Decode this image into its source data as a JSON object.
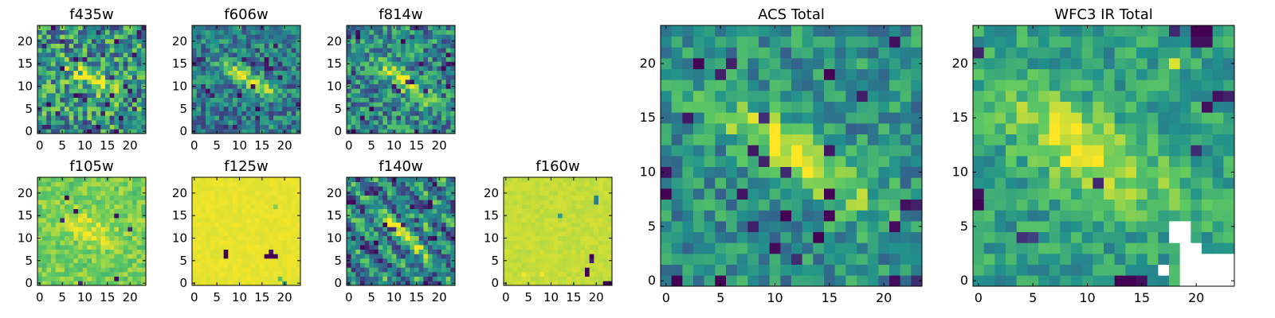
{
  "figure": {
    "description_free": true
  },
  "colormap": [
    "#440154",
    "#3b528b",
    "#21918c",
    "#5ec962",
    "#fde725"
  ],
  "chart_data": [
    {
      "type": "heatmap",
      "title": "f435w",
      "grid_size": 24,
      "xlim": [
        0,
        24
      ],
      "ylim": [
        0,
        24
      ],
      "xticks": [
        0,
        5,
        10,
        15,
        20
      ],
      "yticks": [
        0,
        5,
        10,
        15,
        20
      ],
      "field": {
        "base": 0.52,
        "noise": 0.34,
        "core": 0.42,
        "arm_dir": [
          1,
          -0.55
        ],
        "center": [
          12,
          11.5
        ],
        "spread": 4.2,
        "width": 1.4,
        "seed": 11,
        "dark_frac": 0.05,
        "bright_frac": 0.0
      }
    },
    {
      "type": "heatmap",
      "title": "f606w",
      "grid_size": 24,
      "xlim": [
        0,
        24
      ],
      "ylim": [
        0,
        24
      ],
      "xticks": [
        0,
        5,
        10,
        15,
        20
      ],
      "yticks": [
        0,
        5,
        10,
        15,
        20
      ],
      "field": {
        "base": 0.42,
        "noise": 0.24,
        "core": 0.5,
        "arm_dir": [
          1,
          -0.6
        ],
        "center": [
          12,
          11.5
        ],
        "spread": 5.0,
        "width": 1.3,
        "seed": 23,
        "dark_frac": 0.03,
        "bright_frac": 0.0
      }
    },
    {
      "type": "heatmap",
      "title": "f814w",
      "grid_size": 24,
      "xlim": [
        0,
        24
      ],
      "ylim": [
        0,
        24
      ],
      "xticks": [
        0,
        5,
        10,
        15,
        20
      ],
      "yticks": [
        0,
        5,
        10,
        15,
        20
      ],
      "field": {
        "base": 0.46,
        "noise": 0.28,
        "core": 0.5,
        "arm_dir": [
          1,
          -0.7
        ],
        "center": [
          12.5,
          11
        ],
        "spread": 5.2,
        "width": 1.4,
        "seed": 37,
        "dark_frac": 0.04,
        "bright_frac": 0.0
      }
    },
    {
      "type": "heatmap",
      "title": "f105w",
      "grid_size": 24,
      "xlim": [
        0,
        24
      ],
      "ylim": [
        0,
        24
      ],
      "xticks": [
        0,
        5,
        10,
        15,
        20
      ],
      "yticks": [
        0,
        5,
        10,
        15,
        20
      ],
      "field": {
        "base": 0.78,
        "noise": 0.12,
        "core": 0.16,
        "arm_dir": [
          1,
          -0.6
        ],
        "center": [
          11,
          12
        ],
        "spread": 4.5,
        "width": 2.2,
        "seed": 41,
        "dark_frac": 0.012,
        "bright_frac": 0.0
      }
    },
    {
      "type": "heatmap",
      "title": "f125w",
      "grid_size": 24,
      "xlim": [
        0,
        24
      ],
      "ylim": [
        0,
        24
      ],
      "xticks": [
        0,
        5,
        10,
        15,
        20
      ],
      "yticks": [
        0,
        5,
        10,
        15,
        20
      ],
      "field": {
        "base": 0.965,
        "noise": 0.02,
        "core": 0.0,
        "arm_dir": [
          1,
          -0.6
        ],
        "center": [
          12,
          12
        ],
        "spread": 4,
        "width": 2,
        "seed": 53,
        "dark_frac": 0.0,
        "bright_frac": 0.0
      },
      "outliers": [
        [
          7,
          6,
          0.0
        ],
        [
          7,
          7,
          0.0
        ],
        [
          16,
          6,
          0.0
        ],
        [
          17,
          6,
          0.0
        ],
        [
          17,
          7,
          0.05
        ],
        [
          18,
          6,
          0.0
        ],
        [
          20,
          0,
          0.55
        ],
        [
          19,
          1,
          0.7
        ],
        [
          18,
          17,
          0.8
        ]
      ]
    },
    {
      "type": "heatmap",
      "title": "f140w",
      "grid_size": 24,
      "xlim": [
        0,
        24
      ],
      "ylim": [
        0,
        24
      ],
      "xticks": [
        0,
        5,
        10,
        15,
        20
      ],
      "yticks": [
        0,
        5,
        10,
        15,
        20
      ],
      "field": {
        "base": 0.45,
        "noise": 0.22,
        "core": 0.45,
        "arm_dir": [
          1,
          -0.75
        ],
        "center": [
          12,
          11
        ],
        "spread": 5.0,
        "width": 1.3,
        "seed": 67,
        "dark_frac": 0.05,
        "bright_frac": 0.0,
        "stripes": 0.18
      }
    },
    {
      "type": "heatmap",
      "title": "f160w",
      "grid_size": 24,
      "xlim": [
        0,
        24
      ],
      "ylim": [
        0,
        24
      ],
      "xticks": [
        0,
        5,
        10,
        15,
        20
      ],
      "yticks": [
        0,
        5,
        10,
        15,
        20
      ],
      "field": {
        "base": 0.91,
        "noise": 0.03,
        "core": 0.0,
        "arm_dir": [
          1,
          -0.6
        ],
        "center": [
          12,
          12
        ],
        "spread": 4,
        "width": 2,
        "seed": 71,
        "dark_frac": 0.0,
        "bright_frac": 0.0
      },
      "outliers": [
        [
          18,
          2,
          0.0
        ],
        [
          18,
          3,
          0.0
        ],
        [
          19,
          6,
          0.0
        ],
        [
          19,
          5,
          0.1
        ],
        [
          22,
          0,
          0.0
        ],
        [
          23,
          0,
          0.0
        ],
        [
          20,
          18,
          0.4
        ],
        [
          20,
          19,
          0.45
        ],
        [
          12,
          15,
          0.55
        ],
        [
          4,
          2,
          0.98
        ],
        [
          8,
          2,
          0.99
        ]
      ]
    },
    {
      "type": "heatmap",
      "title": "ACS Total",
      "grid_size": 24,
      "xlim": [
        0,
        24
      ],
      "ylim": [
        0,
        24
      ],
      "xticks": [
        0,
        5,
        10,
        15,
        20
      ],
      "yticks": [
        0,
        5,
        10,
        15,
        20
      ],
      "field": {
        "base": 0.5,
        "noise": 0.2,
        "core": 0.48,
        "arm_dir": [
          1,
          -0.65
        ],
        "center": [
          12,
          11.5
        ],
        "spread": 5.8,
        "width": 1.6,
        "seed": 83,
        "dark_frac": 0.03,
        "bright_frac": 0.0
      },
      "outliers": [
        [
          3,
          20,
          0.0
        ],
        [
          15,
          19,
          0.0
        ],
        [
          14,
          4,
          0.0
        ],
        [
          11,
          6,
          0.0
        ],
        [
          0,
          8,
          0.0
        ],
        [
          0,
          10,
          0.05
        ],
        [
          1,
          0,
          0.0
        ],
        [
          5,
          0,
          0.0
        ],
        [
          22,
          7,
          0.05
        ],
        [
          23,
          7,
          0.1
        ],
        [
          21,
          22,
          0.05
        ]
      ]
    },
    {
      "type": "heatmap",
      "title": "WFC3 IR Total",
      "grid_size": 24,
      "xlim": [
        0,
        24
      ],
      "ylim": [
        0,
        24
      ],
      "xticks": [
        0,
        5,
        10,
        15,
        20
      ],
      "yticks": [
        0,
        5,
        10,
        15,
        20
      ],
      "field": {
        "base": 0.56,
        "noise": 0.16,
        "core": 0.4,
        "arm_dir": [
          1,
          -0.6
        ],
        "center": [
          10,
          12
        ],
        "spread": 6.0,
        "width": 2.4,
        "seed": 97,
        "dark_frac": 0.02,
        "bright_frac": 0.0
      },
      "outliers": [
        [
          20,
          23,
          0.0
        ],
        [
          21,
          23,
          0.0
        ],
        [
          20,
          22,
          0.05
        ],
        [
          21,
          22,
          0.05
        ],
        [
          22,
          17,
          0.05
        ],
        [
          23,
          17,
          0.1
        ],
        [
          18,
          20,
          0.95
        ],
        [
          0,
          7,
          0.0
        ],
        [
          0,
          8,
          0.05
        ],
        [
          14,
          0,
          0.0
        ],
        [
          15,
          0,
          0.05
        ],
        [
          4,
          4,
          0.15
        ],
        [
          5,
          4,
          0.2
        ]
      ],
      "masked": [
        [
          18,
          5
        ],
        [
          19,
          5
        ],
        [
          18,
          4
        ],
        [
          19,
          4
        ],
        [
          19,
          3
        ],
        [
          20,
          3
        ],
        [
          19,
          2
        ],
        [
          20,
          2
        ],
        [
          21,
          2
        ],
        [
          22,
          2
        ],
        [
          23,
          2
        ],
        [
          17,
          1
        ],
        [
          19,
          1
        ],
        [
          20,
          1
        ],
        [
          21,
          1
        ],
        [
          22,
          1
        ],
        [
          23,
          1
        ],
        [
          19,
          0
        ],
        [
          20,
          0
        ],
        [
          21,
          0
        ],
        [
          22,
          0
        ],
        [
          23,
          0
        ]
      ]
    }
  ]
}
